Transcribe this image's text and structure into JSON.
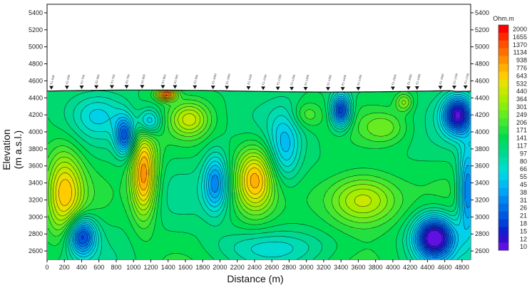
{
  "chart_data": {
    "type": "heatmap",
    "subtype": "resistivity-section-contour",
    "xlabel": "Distance (m)",
    "ylabel_lines": [
      "Elevation",
      "(m a.s.l.)"
    ],
    "xlim": [
      0,
      4900
    ],
    "ylim": [
      2500,
      5500
    ],
    "x_ticks": [
      "0",
      "200",
      "400",
      "600",
      "800",
      "1000",
      "1200",
      "1400",
      "1600",
      "1800",
      "2000",
      "2200",
      "2400",
      "2600",
      "2800",
      "3000",
      "3200",
      "3400",
      "3600",
      "3800",
      "4000",
      "4200",
      "4400",
      "4600",
      "4800"
    ],
    "y_ticks": [
      "2600",
      "2800",
      "3000",
      "3200",
      "3400",
      "3600",
      "3800",
      "4000",
      "4200",
      "4400",
      "4600",
      "4800",
      "5000",
      "5200",
      "5400"
    ],
    "colorbar": {
      "title": "Ohm.m",
      "levels": [
        "2000",
        "1655",
        "1370",
        "1134",
        "938",
        "776",
        "643",
        "532",
        "440",
        "364",
        "301",
        "249",
        "206",
        "171",
        "141",
        "117",
        "97",
        "80",
        "66",
        "55",
        "45",
        "38",
        "31",
        "26",
        "21",
        "18",
        "15",
        "12",
        "10"
      ],
      "colors": [
        "#ff0000",
        "#ff2a00",
        "#ff5000",
        "#ff7000",
        "#ff9000",
        "#ffb000",
        "#ffcc00",
        "#e8e000",
        "#c8e800",
        "#a8ec00",
        "#88ee10",
        "#66ec20",
        "#44e830",
        "#22e040",
        "#00dc50",
        "#00d870",
        "#00d890",
        "#00dcb0",
        "#00dcd0",
        "#00d0e8",
        "#00bcf0",
        "#00a4f4",
        "#0088f0",
        "#0070e8",
        "#0058e0",
        "#0040d8",
        "#1020d0",
        "#3010d0",
        "#6010e0"
      ]
    },
    "stations": [
      {
        "x": 50,
        "label": "E1-S00"
      },
      {
        "x": 230,
        "label": "E1-S50"
      },
      {
        "x": 400,
        "label": "E1-T00"
      },
      {
        "x": 570,
        "label": "E1-S50"
      },
      {
        "x": 750,
        "label": "E1-T00"
      },
      {
        "x": 920,
        "label": "E1-T50"
      },
      {
        "x": 1100,
        "label": "E1-800"
      },
      {
        "x": 1340,
        "label": "E1-850"
      },
      {
        "x": 1480,
        "label": "E1-900"
      },
      {
        "x": 1710,
        "label": "E1-950"
      },
      {
        "x": 1920,
        "label": "E1-1000"
      },
      {
        "x": 2080,
        "label": "E1-1050"
      },
      {
        "x": 2330,
        "label": "E1-1100"
      },
      {
        "x": 2500,
        "label": "E1-1150"
      },
      {
        "x": 2670,
        "label": "E1-1200"
      },
      {
        "x": 2830,
        "label": "E1-1250"
      },
      {
        "x": 2990,
        "label": "E1-1300"
      },
      {
        "x": 3250,
        "label": "E1-1350"
      },
      {
        "x": 3420,
        "label": "E1-1400"
      },
      {
        "x": 3600,
        "label": "E1-1450"
      },
      {
        "x": 4000,
        "label": "E1-1500"
      },
      {
        "x": 4180,
        "label": "E1-1550"
      },
      {
        "x": 4280,
        "label": "E1-1600"
      },
      {
        "x": 4550,
        "label": "E1-1650"
      },
      {
        "x": 4710,
        "label": "E1-1700"
      },
      {
        "x": 4840,
        "label": "E1-1750"
      }
    ],
    "surface_elevation_m": 4480,
    "anomalies": [
      {
        "x": 200,
        "y": 3280,
        "rx": 220,
        "ry": 520,
        "level": 0.68
      },
      {
        "x": 400,
        "y": 2780,
        "rx": 160,
        "ry": 220,
        "level": -0.9
      },
      {
        "x": 1120,
        "y": 3500,
        "rx": 150,
        "ry": 500,
        "level": 0.9
      },
      {
        "x": 900,
        "y": 3950,
        "rx": 110,
        "ry": 220,
        "level": -0.75
      },
      {
        "x": 1180,
        "y": 4120,
        "rx": 140,
        "ry": 160,
        "level": -0.55
      },
      {
        "x": 1380,
        "y": 4440,
        "rx": 110,
        "ry": 70,
        "level": 1.0
      },
      {
        "x": 1650,
        "y": 4150,
        "rx": 220,
        "ry": 200,
        "level": 0.45
      },
      {
        "x": 1950,
        "y": 3400,
        "rx": 140,
        "ry": 330,
        "level": -0.6
      },
      {
        "x": 2400,
        "y": 3450,
        "rx": 220,
        "ry": 380,
        "level": 0.72
      },
      {
        "x": 2750,
        "y": 3800,
        "rx": 180,
        "ry": 420,
        "level": -0.4
      },
      {
        "x": 3000,
        "y": 4200,
        "rx": 180,
        "ry": 160,
        "level": 0.25
      },
      {
        "x": 3400,
        "y": 4250,
        "rx": 110,
        "ry": 190,
        "level": -0.95
      },
      {
        "x": 3650,
        "y": 3200,
        "rx": 420,
        "ry": 300,
        "level": 0.65
      },
      {
        "x": 3900,
        "y": 4050,
        "rx": 260,
        "ry": 180,
        "level": 0.25
      },
      {
        "x": 4130,
        "y": 4350,
        "rx": 100,
        "ry": 110,
        "level": 0.35
      },
      {
        "x": 4480,
        "y": 2760,
        "rx": 230,
        "ry": 250,
        "level": -1.2
      },
      {
        "x": 4750,
        "y": 4200,
        "rx": 170,
        "ry": 220,
        "level": -1.0
      },
      {
        "x": 4870,
        "y": 3300,
        "rx": 110,
        "ry": 500,
        "level": -0.75
      },
      {
        "x": 600,
        "y": 4200,
        "rx": 300,
        "ry": 250,
        "level": -0.25
      },
      {
        "x": 2600,
        "y": 2650,
        "rx": 700,
        "ry": 180,
        "level": -0.2
      }
    ],
    "grid": false
  }
}
